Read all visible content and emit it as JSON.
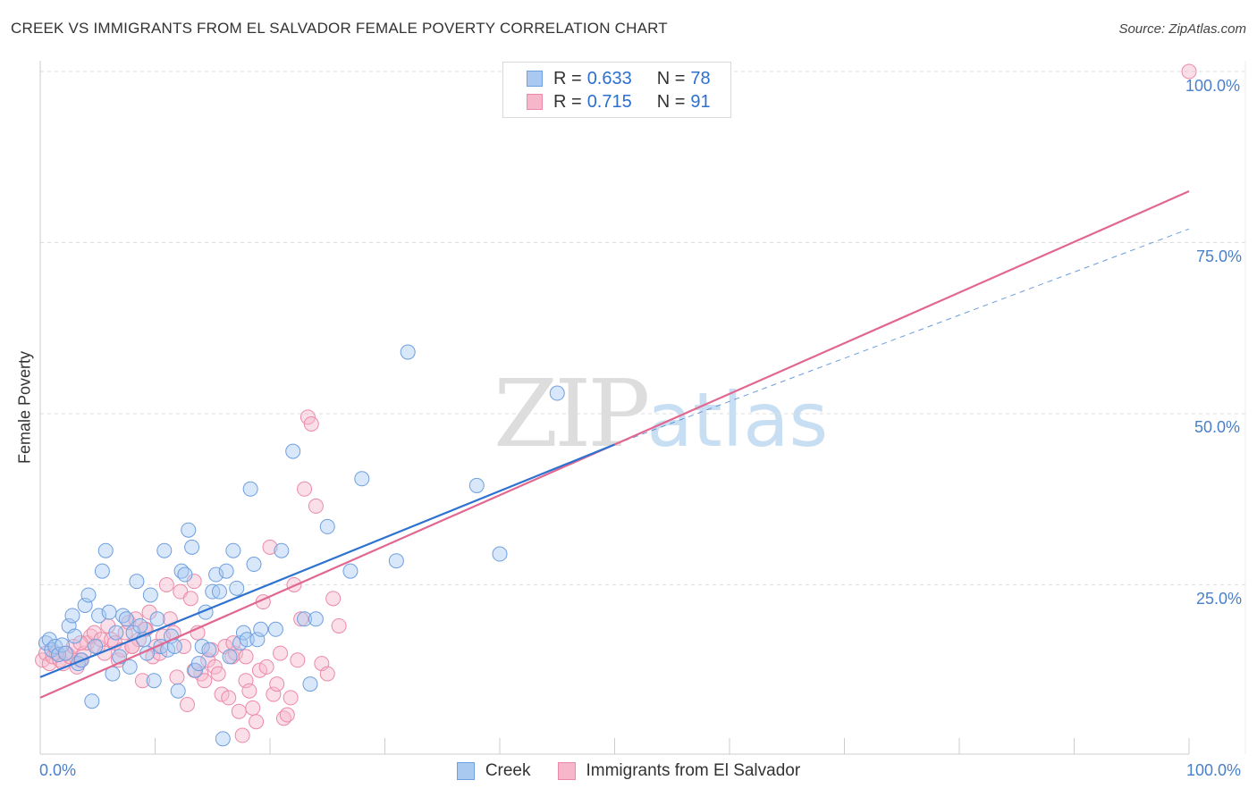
{
  "header": {
    "title": "CREEK VS IMMIGRANTS FROM EL SALVADOR FEMALE POVERTY CORRELATION CHART",
    "source": "Source: ZipAtlas.com"
  },
  "watermark": {
    "zip": "ZIP",
    "atlas": "atlas"
  },
  "legend": {
    "rows": [
      {
        "r_label": "R = ",
        "r_value": "0.633",
        "n_label": "N = ",
        "n_value": "78"
      },
      {
        "r_label": "R = ",
        "r_value": "0.715",
        "n_label": "N = ",
        "n_value": "91"
      }
    ]
  },
  "axes": {
    "ylabel": "Female Poverty",
    "x_min_label": "0.0%",
    "x_max_label": "100.0%",
    "y_ticks": [
      "25.0%",
      "50.0%",
      "75.0%",
      "100.0%"
    ]
  },
  "colors": {
    "creek_fill": "#a9c9f1",
    "creek_stroke": "#6f9fdf",
    "creek_line": "#2e72cf",
    "salv_fill": "#f7b7cb",
    "salv_stroke": "#eb8aa8",
    "salv_line": "#e2678f"
  },
  "chart_data": {
    "type": "scatter",
    "title": "CREEK VS IMMIGRANTS FROM EL SALVADOR FEMALE POVERTY CORRELATION CHART",
    "xlabel": "",
    "ylabel": "Female Poverty",
    "xlim": [
      0,
      100
    ],
    "ylim": [
      -2,
      102
    ],
    "grid": true,
    "legend_position": "top-center",
    "series": [
      {
        "name": "Creek",
        "r": 0.633,
        "n": 78,
        "trend": {
          "x": [
            0,
            50
          ],
          "y": [
            11.5,
            45.5
          ]
        },
        "trend_extension": {
          "x": [
            50,
            100
          ],
          "y": [
            45.5,
            77.0
          ]
        },
        "points": [
          [
            0.5,
            16.5
          ],
          [
            0.8,
            17
          ],
          [
            1,
            15.5
          ],
          [
            1.3,
            16
          ],
          [
            1.6,
            14.8
          ],
          [
            1.9,
            16.2
          ],
          [
            2.2,
            15
          ],
          [
            2.5,
            19
          ],
          [
            2.8,
            20.5
          ],
          [
            3,
            17.5
          ],
          [
            3.3,
            13.5
          ],
          [
            3.6,
            14
          ],
          [
            3.9,
            22
          ],
          [
            4.2,
            23.5
          ],
          [
            4.5,
            8
          ],
          [
            4.8,
            16
          ],
          [
            5.1,
            20.5
          ],
          [
            5.4,
            27
          ],
          [
            5.7,
            30
          ],
          [
            6,
            21
          ],
          [
            6.3,
            12
          ],
          [
            6.6,
            18
          ],
          [
            6.9,
            14.5
          ],
          [
            7.2,
            20.5
          ],
          [
            7.5,
            20
          ],
          [
            7.8,
            13
          ],
          [
            8.1,
            18
          ],
          [
            8.4,
            25.5
          ],
          [
            8.7,
            19
          ],
          [
            9,
            17
          ],
          [
            9.3,
            15
          ],
          [
            9.6,
            23.5
          ],
          [
            9.9,
            11
          ],
          [
            10.2,
            20
          ],
          [
            10.5,
            16
          ],
          [
            10.8,
            30
          ],
          [
            11.1,
            15.5
          ],
          [
            11.4,
            17.5
          ],
          [
            11.7,
            16
          ],
          [
            12,
            9.5
          ],
          [
            12.3,
            27
          ],
          [
            12.6,
            26.5
          ],
          [
            12.9,
            33
          ],
          [
            13.2,
            30.5
          ],
          [
            13.5,
            12.5
          ],
          [
            13.8,
            13.5
          ],
          [
            14.1,
            16
          ],
          [
            14.4,
            21
          ],
          [
            14.7,
            15.5
          ],
          [
            15,
            24
          ],
          [
            15.3,
            26.5
          ],
          [
            15.6,
            24
          ],
          [
            15.9,
            2.5
          ],
          [
            16.2,
            27
          ],
          [
            16.5,
            14.5
          ],
          [
            16.8,
            30
          ],
          [
            17.1,
            24.5
          ],
          [
            17.4,
            16.5
          ],
          [
            17.7,
            18
          ],
          [
            18,
            17
          ],
          [
            18.3,
            39
          ],
          [
            18.6,
            28
          ],
          [
            18.9,
            17
          ],
          [
            19.2,
            18.5
          ],
          [
            20.5,
            18.5
          ],
          [
            21,
            30
          ],
          [
            22,
            44.5
          ],
          [
            23,
            20
          ],
          [
            23.5,
            10.5
          ],
          [
            24,
            20
          ],
          [
            25,
            33.5
          ],
          [
            27,
            27
          ],
          [
            28,
            40.5
          ],
          [
            31,
            28.5
          ],
          [
            32,
            59
          ],
          [
            38,
            39.5
          ],
          [
            40,
            29.5
          ],
          [
            45,
            53
          ]
        ]
      },
      {
        "name": "Immigrants from El Salvador",
        "r": 0.715,
        "n": 91,
        "trend": {
          "x": [
            0,
            100
          ],
          "y": [
            8.5,
            82.5
          ]
        },
        "points": [
          [
            0.2,
            14
          ],
          [
            0.5,
            15
          ],
          [
            0.8,
            13.5
          ],
          [
            1.1,
            14.5
          ],
          [
            1.4,
            15
          ],
          [
            1.7,
            14
          ],
          [
            2,
            13.5
          ],
          [
            2.3,
            15
          ],
          [
            2.6,
            14.5
          ],
          [
            2.9,
            16
          ],
          [
            3.2,
            13
          ],
          [
            3.5,
            14
          ],
          [
            3.8,
            15
          ],
          [
            4.1,
            16.5
          ],
          [
            4.4,
            17.5
          ],
          [
            4.7,
            18
          ],
          [
            5,
            16
          ],
          [
            5.3,
            17
          ],
          [
            5.6,
            15
          ],
          [
            5.9,
            19
          ],
          [
            6.2,
            17
          ],
          [
            6.5,
            16.5
          ],
          [
            6.8,
            14
          ],
          [
            7.1,
            15.5
          ],
          [
            7.4,
            18
          ],
          [
            7.7,
            19.5
          ],
          [
            8,
            16
          ],
          [
            8.3,
            20
          ],
          [
            8.6,
            17
          ],
          [
            8.9,
            11
          ],
          [
            9.2,
            18.5
          ],
          [
            9.5,
            21
          ],
          [
            9.8,
            14.5
          ],
          [
            10.1,
            16
          ],
          [
            10.4,
            15
          ],
          [
            10.7,
            17.5
          ],
          [
            11,
            25
          ],
          [
            11.3,
            20
          ],
          [
            11.6,
            18
          ],
          [
            11.9,
            11.5
          ],
          [
            12.2,
            24
          ],
          [
            12.5,
            16
          ],
          [
            12.8,
            7.5
          ],
          [
            13.1,
            23
          ],
          [
            13.4,
            25.5
          ],
          [
            13.7,
            18
          ],
          [
            14,
            12
          ],
          [
            14.3,
            11
          ],
          [
            14.6,
            14
          ],
          [
            14.9,
            15.5
          ],
          [
            15.2,
            13
          ],
          [
            15.5,
            12
          ],
          [
            15.8,
            9
          ],
          [
            16.1,
            16
          ],
          [
            16.4,
            8.5
          ],
          [
            16.7,
            14.5
          ],
          [
            17,
            15
          ],
          [
            17.3,
            6.5
          ],
          [
            17.6,
            3
          ],
          [
            17.9,
            11
          ],
          [
            18.2,
            9.5
          ],
          [
            18.5,
            7
          ],
          [
            18.8,
            5
          ],
          [
            19.1,
            12.5
          ],
          [
            19.4,
            22.5
          ],
          [
            19.7,
            13
          ],
          [
            20,
            30.5
          ],
          [
            20.3,
            9
          ],
          [
            20.6,
            10.5
          ],
          [
            20.9,
            15
          ],
          [
            21.2,
            5.5
          ],
          [
            21.5,
            6
          ],
          [
            21.8,
            8.5
          ],
          [
            22.1,
            25
          ],
          [
            22.4,
            14
          ],
          [
            22.7,
            20
          ],
          [
            23,
            39
          ],
          [
            23.3,
            49.5
          ],
          [
            23.6,
            48.5
          ],
          [
            24,
            36.5
          ],
          [
            24.5,
            13.5
          ],
          [
            25,
            12
          ],
          [
            25.5,
            23
          ],
          [
            26,
            19
          ],
          [
            17.9,
            14.5
          ],
          [
            16.8,
            16.5
          ],
          [
            13.4,
            12.5
          ],
          [
            9.1,
            18.5
          ],
          [
            8,
            16
          ],
          [
            3.5,
            16.5
          ],
          [
            100,
            100
          ]
        ]
      }
    ]
  },
  "bottom_legend": {
    "items": [
      "Creek",
      "Immigrants from El Salvador"
    ]
  }
}
